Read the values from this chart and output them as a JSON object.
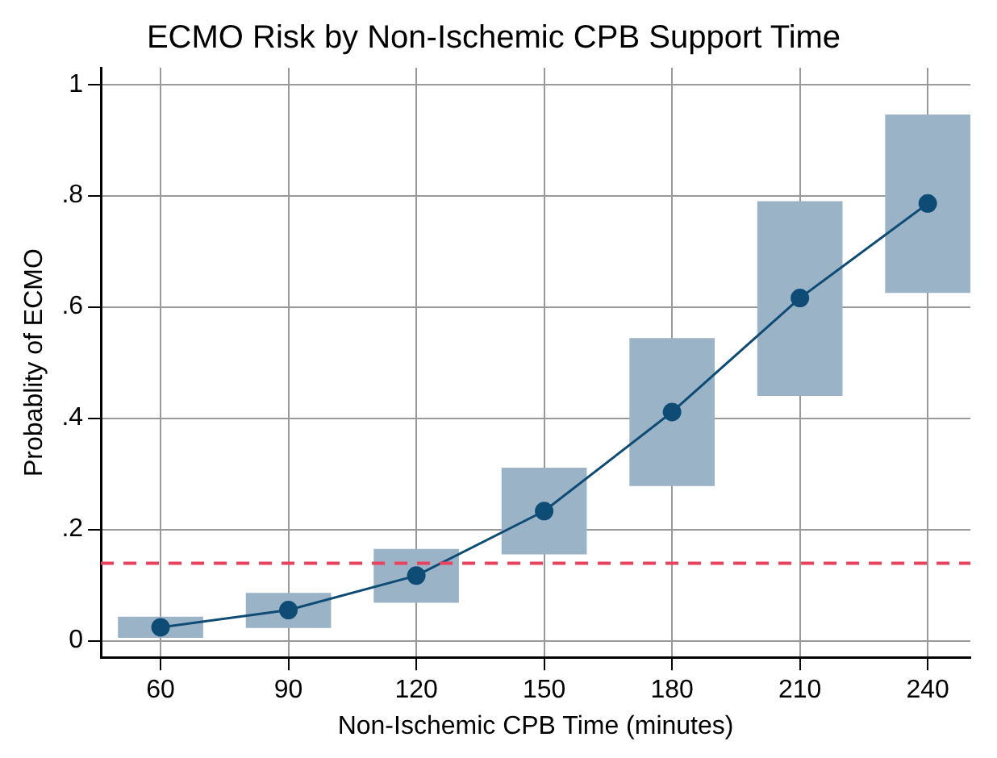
{
  "chart_data": {
    "type": "line",
    "title": "ECMO Risk by Non-Ischemic CPB Support Time",
    "xlabel": "Non-Ischemic CPB Time (minutes)",
    "ylabel": "Probablity of ECMO",
    "x": [
      60,
      90,
      120,
      150,
      180,
      210,
      240
    ],
    "series": [
      {
        "type": "bar",
        "color": "#9bb3c6",
        "base": [
          0.005,
          0.023,
          0.068,
          0.155,
          0.278,
          0.44,
          0.625
        ],
        "values": [
          0.038,
          0.063,
          0.097,
          0.156,
          0.266,
          0.35,
          0.321
        ]
      },
      {
        "color": "#0f4c75",
        "values": [
          0.024,
          0.055,
          0.117,
          0.233,
          0.411,
          0.616,
          0.786
        ]
      }
    ],
    "xlim": [
      46,
      250
    ],
    "xticks": [
      60,
      90,
      120,
      150,
      180,
      210,
      240
    ],
    "ylim": [
      -0.03,
      1.03
    ],
    "yticks": [
      {
        "value": 0,
        "label": "0"
      },
      {
        "value": 0.2,
        "label": ".2"
      },
      {
        "value": 0.4,
        "label": ".4"
      },
      {
        "value": 0.6,
        "label": ".6"
      },
      {
        "value": 0.8,
        "label": ".8"
      },
      {
        "value": 1,
        "label": "1"
      }
    ],
    "ref_lines": [
      {
        "axis": "y",
        "value": 0.139,
        "color": "#e8425e",
        "line_style": "dashed"
      }
    ],
    "grid": true,
    "marker": "circle",
    "line_style": "solid"
  }
}
